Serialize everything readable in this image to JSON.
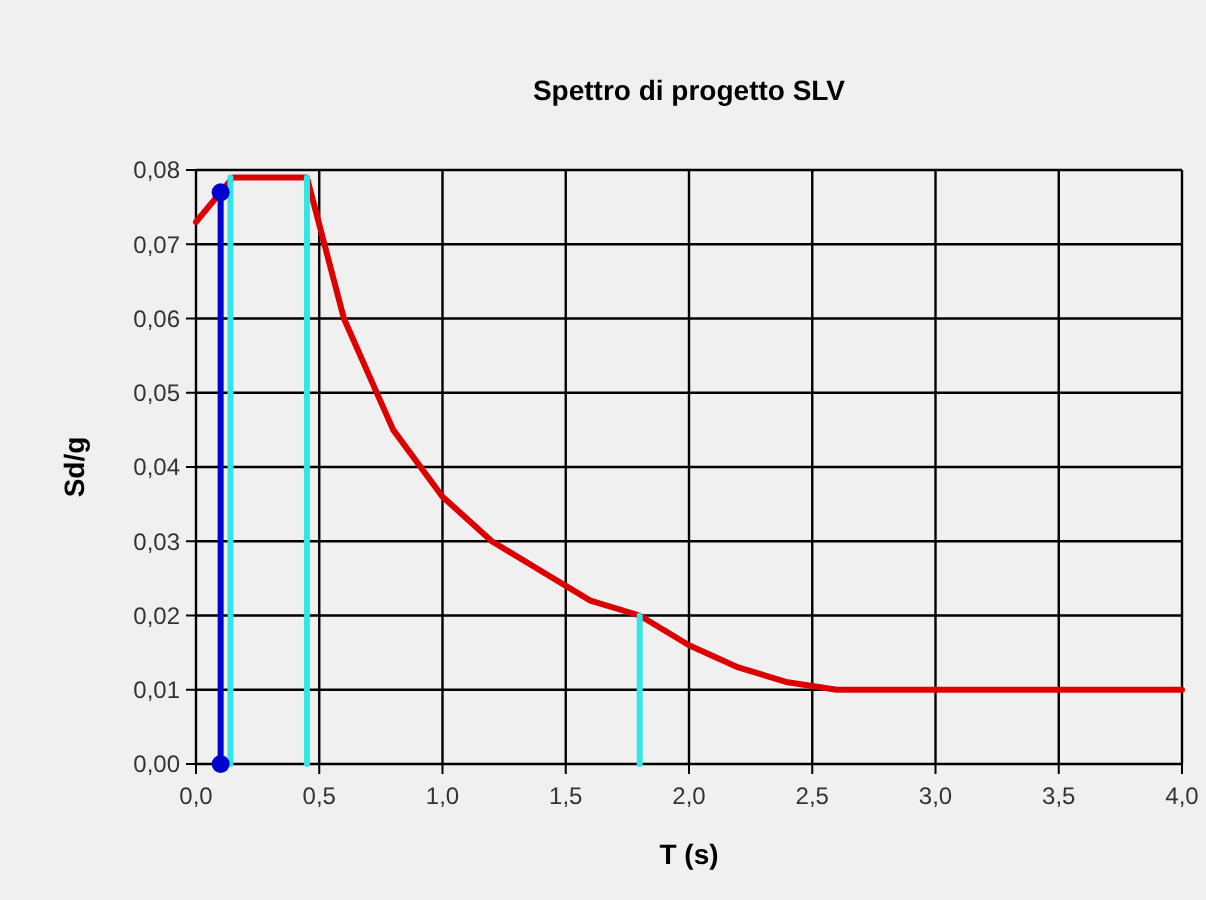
{
  "chart_data": {
    "type": "line",
    "title": "Spettro di progetto SLV",
    "xlabel": "T (s)",
    "ylabel": "Sd/g",
    "xlim": [
      0,
      4
    ],
    "xticks": [
      {
        "value": 0,
        "label": "0,0"
      },
      {
        "value": 0.5,
        "label": "0,5"
      },
      {
        "value": 1,
        "label": "1,0"
      },
      {
        "value": 1.5,
        "label": "1,5"
      },
      {
        "value": 2,
        "label": "2,0"
      },
      {
        "value": 2.5,
        "label": "2,5"
      },
      {
        "value": 3,
        "label": "3,0"
      },
      {
        "value": 3.5,
        "label": "3,5"
      },
      {
        "value": 4,
        "label": "4,0"
      }
    ],
    "ylim": [
      0,
      0.08
    ],
    "yticks": [
      {
        "value": 0,
        "label": "0,00"
      },
      {
        "value": 0.01,
        "label": "0,01"
      },
      {
        "value": 0.02,
        "label": "0,02"
      },
      {
        "value": 0.03,
        "label": "0,03"
      },
      {
        "value": 0.04,
        "label": "0,04"
      },
      {
        "value": 0.05,
        "label": "0,05"
      },
      {
        "value": 0.06,
        "label": "0,06"
      },
      {
        "value": 0.07,
        "label": "0,07"
      },
      {
        "value": 0.08,
        "label": "0,08"
      }
    ],
    "grid": true,
    "line_style": "solid",
    "series": [
      {
        "color": "#dd0000",
        "marker": "none",
        "x": [
          0,
          0.15,
          0.45,
          0.6,
          0.8,
          1.0,
          1.2,
          1.4,
          1.6,
          1.8,
          2.0,
          2.2,
          2.4,
          2.6,
          4.0
        ],
        "values": [
          0.073,
          0.079,
          0.079,
          0.06,
          0.045,
          0.036,
          0.03,
          0.026,
          0.022,
          0.02,
          0.016,
          0.013,
          0.011,
          0.01,
          0.01
        ]
      },
      {
        "color": "#33e6e6",
        "marker": "none",
        "x": [
          0.14,
          0.14
        ],
        "values": [
          0,
          0.079
        ]
      },
      {
        "color": "#33e6e6",
        "marker": "none",
        "x": [
          0.45,
          0.45
        ],
        "values": [
          0,
          0.079
        ]
      },
      {
        "color": "#33e6e6",
        "marker": "none",
        "x": [
          1.8,
          1.8
        ],
        "values": [
          0,
          0.02
        ]
      },
      {
        "color": "#0000cc",
        "marker": "circle",
        "x": [
          0.1,
          0.1
        ],
        "values": [
          0,
          0.077
        ]
      }
    ]
  }
}
